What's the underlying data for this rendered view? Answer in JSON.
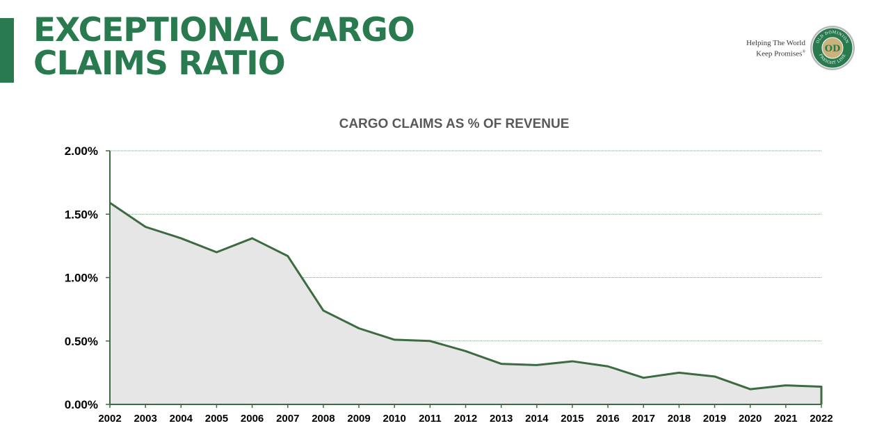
{
  "header": {
    "title_line1": "EXCEPTIONAL CARGO",
    "title_line2": "CLAIMS RATIO",
    "tagline_line1": "Helping The World",
    "tagline_line2": "Keep Promises",
    "tagline_mark": "®",
    "logo_top_text": "OLD DOMINION",
    "logo_bottom_text": "FREIGHT LINE",
    "logo_monogram": "OD"
  },
  "colors": {
    "brand_green": "#2a7a4f",
    "line_green": "#3d6b41",
    "area_fill": "#e6e6e6",
    "title_gray": "#595959"
  },
  "chart_data": {
    "type": "area",
    "title": "CARGO CLAIMS AS % OF REVENUE",
    "categories": [
      "2002",
      "2003",
      "2004",
      "2005",
      "2006",
      "2007",
      "2008",
      "2009",
      "2010",
      "2011",
      "2012",
      "2013",
      "2014",
      "2015",
      "2016",
      "2017",
      "2018",
      "2019",
      "2020",
      "2021",
      "2022"
    ],
    "series": [
      {
        "values": [
          1.59,
          1.4,
          1.31,
          1.2,
          1.31,
          1.17,
          0.74,
          0.6,
          0.51,
          0.5,
          0.42,
          0.32,
          0.31,
          0.34,
          0.3,
          0.21,
          0.25,
          0.22,
          0.12,
          0.15,
          0.14
        ]
      }
    ],
    "y_ticks": [
      "0.00%",
      "0.50%",
      "1.00%",
      "1.50%",
      "2.00%"
    ],
    "ylim": [
      0,
      2.0
    ],
    "y_unit": "%",
    "grid": "horizontal-dotted",
    "legend": "none"
  }
}
